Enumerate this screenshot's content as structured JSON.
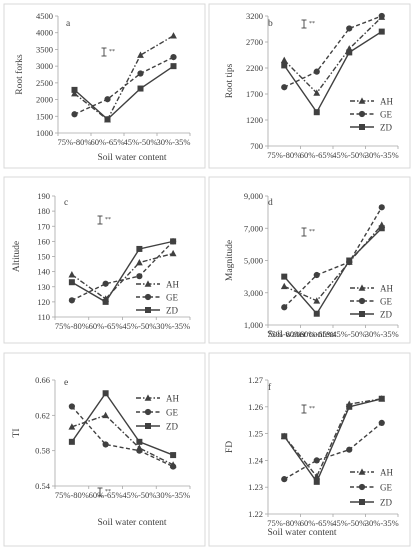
{
  "figure": {
    "colors": {
      "frame": "#d9d9d9",
      "axis": "#a6a6a6",
      "series": "#404040",
      "text": "#404040"
    }
  },
  "chart_data": [
    {
      "panel": "a",
      "type": "line",
      "categories": [
        "75%-80%",
        "60%-65%",
        "45%-50%",
        "30%-35%"
      ],
      "xlabel": "Soil water content",
      "ylabel": "Root forks",
      "ylim": [
        1000,
        4500
      ],
      "yticks": [
        "1000",
        "1500",
        "2000",
        "2500",
        "3000",
        "3500",
        "4000",
        "4500"
      ],
      "significance": "**",
      "legend_position": "none",
      "series": [
        {
          "name": "AH",
          "values": [
            2180,
            1400,
            3330,
            3910
          ],
          "dash": "dashdot",
          "marker": "triangle"
        },
        {
          "name": "GE",
          "values": [
            1560,
            2010,
            2780,
            3270
          ],
          "dash": "dash",
          "marker": "circle"
        },
        {
          "name": "ZD",
          "values": [
            2290,
            1410,
            2330,
            3000
          ],
          "dash": "solid",
          "marker": "square"
        }
      ]
    },
    {
      "panel": "b",
      "type": "line",
      "categories": [
        "75%-80%",
        "60%-65%",
        "45%-50%",
        "30%-35%"
      ],
      "xlabel": "",
      "ylabel": "Root tips",
      "ylim": [
        700,
        3200
      ],
      "yticks": [
        "700",
        "1200",
        "1700",
        "2200",
        "2700",
        "3200"
      ],
      "significance": "**",
      "legend_position": "right",
      "series": [
        {
          "name": "AH",
          "values": [
            2350,
            1720,
            2570,
            3180
          ],
          "dash": "dashdot",
          "marker": "triangle"
        },
        {
          "name": "GE",
          "values": [
            1830,
            2130,
            2960,
            3200
          ],
          "dash": "dash",
          "marker": "circle"
        },
        {
          "name": "ZD",
          "values": [
            2250,
            1350,
            2500,
            2900
          ],
          "dash": "solid",
          "marker": "square"
        }
      ]
    },
    {
      "panel": "c",
      "type": "line",
      "categories": [
        "75%-80%",
        "60%-65%",
        "45%-50%",
        "30%-35%"
      ],
      "xlabel": "",
      "ylabel": "Altitude",
      "ylim": [
        110,
        190
      ],
      "yticks": [
        "110",
        "120",
        "130",
        "140",
        "150",
        "160",
        "170",
        "180",
        "190"
      ],
      "significance": "**",
      "legend_position": "right",
      "series": [
        {
          "name": "AH",
          "values": [
            138,
            122,
            146,
            152
          ],
          "dash": "dashdot",
          "marker": "triangle"
        },
        {
          "name": "GE",
          "values": [
            121,
            132,
            137,
            160
          ],
          "dash": "dash",
          "marker": "circle"
        },
        {
          "name": "ZD",
          "values": [
            133,
            120,
            155,
            160
          ],
          "dash": "solid",
          "marker": "square"
        }
      ]
    },
    {
      "panel": "d",
      "type": "line",
      "categories": [
        "75%-80%",
        "60%-65%",
        "45%-50%",
        "30%-35%"
      ],
      "xlabel": "Soil water content",
      "ylabel": "Magnitude",
      "ylim": [
        1000,
        9000
      ],
      "yticks": [
        "1,000",
        "3,000",
        "5,000",
        "7,000",
        "9,000"
      ],
      "significance": "**",
      "legend_position": "right",
      "series": [
        {
          "name": "AH",
          "values": [
            3400,
            2500,
            4900,
            7200
          ],
          "dash": "dashdot",
          "marker": "triangle"
        },
        {
          "name": "GE",
          "values": [
            2100,
            4100,
            4900,
            8300
          ],
          "dash": "dash",
          "marker": "circle"
        },
        {
          "name": "ZD",
          "values": [
            4000,
            1700,
            5000,
            7000
          ],
          "dash": "solid",
          "marker": "square"
        }
      ]
    },
    {
      "panel": "e",
      "type": "line",
      "categories": [
        "75%-80%",
        "60%-65%",
        "45%-50%",
        "30%-35%"
      ],
      "xlabel": "Soil water content",
      "ylabel": "TI",
      "ylim": [
        0.54,
        0.66
      ],
      "yticks": [
        "0.54",
        "0.58",
        "0.62",
        "0.66"
      ],
      "significance": "**",
      "legend_position": "right",
      "series": [
        {
          "name": "AH",
          "values": [
            0.607,
            0.62,
            0.583,
            0.564
          ],
          "dash": "dashdot",
          "marker": "triangle"
        },
        {
          "name": "GE",
          "values": [
            0.63,
            0.587,
            0.58,
            0.562
          ],
          "dash": "dash",
          "marker": "circle"
        },
        {
          "name": "ZD",
          "values": [
            0.59,
            0.645,
            0.59,
            0.575
          ],
          "dash": "solid",
          "marker": "square"
        }
      ]
    },
    {
      "panel": "f",
      "type": "line",
      "categories": [
        "75%-80%",
        "60%-65%",
        "45%-50%",
        "30%-35%"
      ],
      "xlabel": "Soil water content",
      "ylabel": "FD",
      "ylim": [
        1.22,
        1.27
      ],
      "yticks": [
        "1.22",
        "1.23",
        "1.24",
        "1.25",
        "1.26",
        "1.27"
      ],
      "significance": "**",
      "legend_position": "right",
      "series": [
        {
          "name": "AH",
          "values": [
            1.249,
            1.234,
            1.261,
            1.263
          ],
          "dash": "dashdot",
          "marker": "triangle"
        },
        {
          "name": "GE",
          "values": [
            1.233,
            1.24,
            1.244,
            1.254
          ],
          "dash": "dash",
          "marker": "circle"
        },
        {
          "name": "ZD",
          "values": [
            1.249,
            1.232,
            1.26,
            1.263
          ],
          "dash": "solid",
          "marker": "square"
        }
      ]
    }
  ]
}
